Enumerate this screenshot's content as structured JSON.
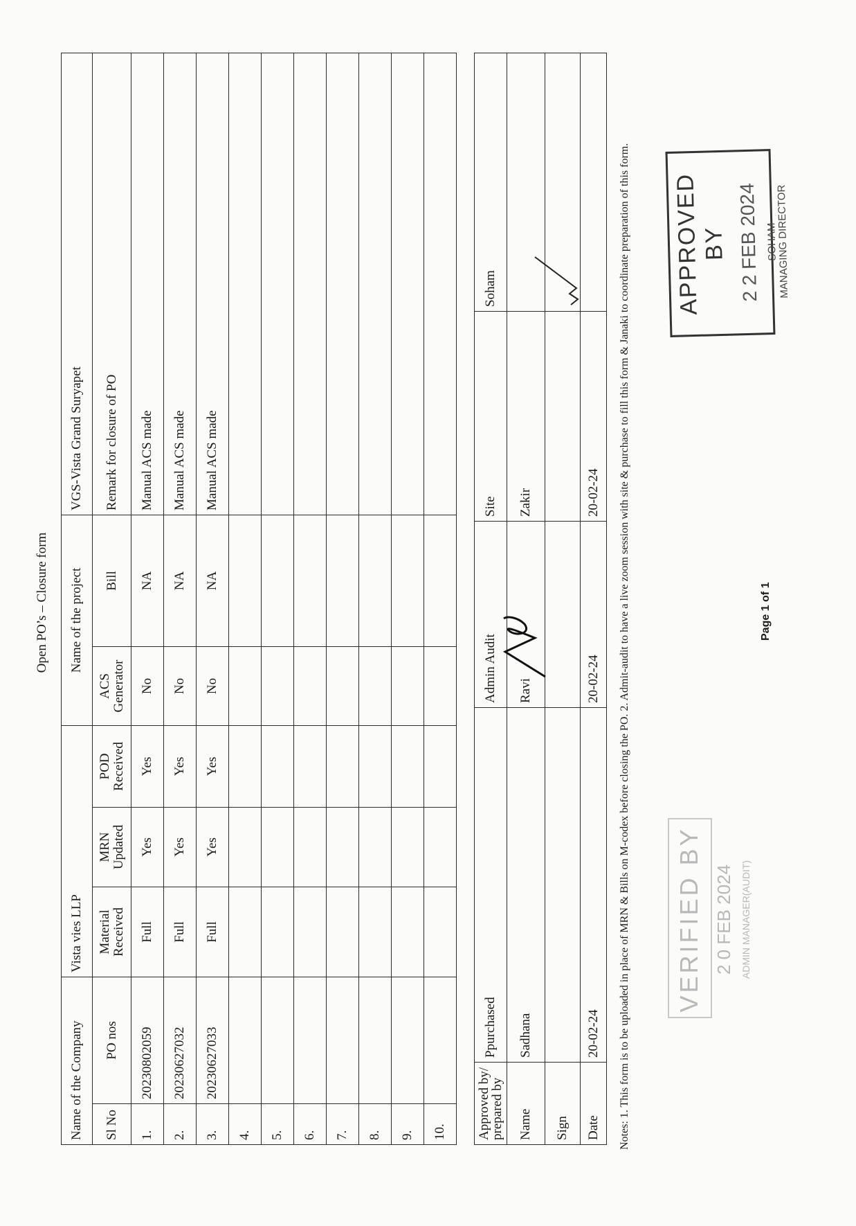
{
  "title": "Open PO’s – Closure form",
  "header": {
    "company_label": "Name of the Company",
    "company_value": "Vista vies LLP",
    "project_label": "Name of the project",
    "project_value": "VGS-Vista Grand Suryapet"
  },
  "columns": [
    "Sl No",
    "PO nos",
    "Material Received",
    "MRN Updated",
    "POD Received",
    "ACS Generator",
    "Bill",
    "Remark for closure of PO"
  ],
  "rows": [
    {
      "sl": "1.",
      "po": "20230802059",
      "material": "Full",
      "mrn": "Yes",
      "pod": "Yes",
      "acs": "No",
      "bill": "NA",
      "remark": "Manual ACS made"
    },
    {
      "sl": "2.",
      "po": "20230627032",
      "material": "Full",
      "mrn": "Yes",
      "pod": "Yes",
      "acs": "No",
      "bill": "NA",
      "remark": "Manual ACS made"
    },
    {
      "sl": "3.",
      "po": "20230627033",
      "material": "Full",
      "mrn": "Yes",
      "pod": "Yes",
      "acs": "No",
      "bill": "NA",
      "remark": "Manual ACS made"
    },
    {
      "sl": "4.",
      "po": "",
      "material": "",
      "mrn": "",
      "pod": "",
      "acs": "",
      "bill": "",
      "remark": ""
    },
    {
      "sl": "5.",
      "po": "",
      "material": "",
      "mrn": "",
      "pod": "",
      "acs": "",
      "bill": "",
      "remark": ""
    },
    {
      "sl": "6.",
      "po": "",
      "material": "",
      "mrn": "",
      "pod": "",
      "acs": "",
      "bill": "",
      "remark": ""
    },
    {
      "sl": "7.",
      "po": "",
      "material": "",
      "mrn": "",
      "pod": "",
      "acs": "",
      "bill": "",
      "remark": ""
    },
    {
      "sl": "8.",
      "po": "",
      "material": "",
      "mrn": "",
      "pod": "",
      "acs": "",
      "bill": "",
      "remark": ""
    },
    {
      "sl": "9.",
      "po": "",
      "material": "",
      "mrn": "",
      "pod": "",
      "acs": "",
      "bill": "",
      "remark": ""
    },
    {
      "sl": "10.",
      "po": "",
      "material": "",
      "mrn": "",
      "pod": "",
      "acs": "",
      "bill": "",
      "remark": ""
    }
  ],
  "approval": {
    "corner_label": "Approved by/ prepared by",
    "headers": [
      "Ppurchased",
      "Admin Audit",
      "Site",
      "Soham"
    ],
    "row_labels": {
      "name": "Name",
      "sign": "Sign",
      "date": "Date"
    },
    "names": [
      "Sadhana",
      "Ravi",
      "Zakir",
      ""
    ],
    "dates": [
      "20-02-24",
      "20-02-24",
      "20-02-24",
      ""
    ]
  },
  "stamps": {
    "approved": {
      "line1": "APPROVED BY",
      "line2": "2 2 FEB 2024",
      "line3": "SOHAM",
      "line4": "MANAGING DIRECTOR"
    },
    "verified": {
      "line1": "VERIFIED BY",
      "line2": "2 0 FEB 2024",
      "line3": "ADMIN MANAGER(AUDIT)"
    }
  },
  "notes": "Notes: 1. This form is to be uploaded in place of MRN & Bills on M-codex before closing the PO. 2. Admit-audit to have a live zoom session with site & purchase to fill this form & Janaki to coordinate preparation of this form.",
  "footer": {
    "page": "Page 1 of 1"
  }
}
